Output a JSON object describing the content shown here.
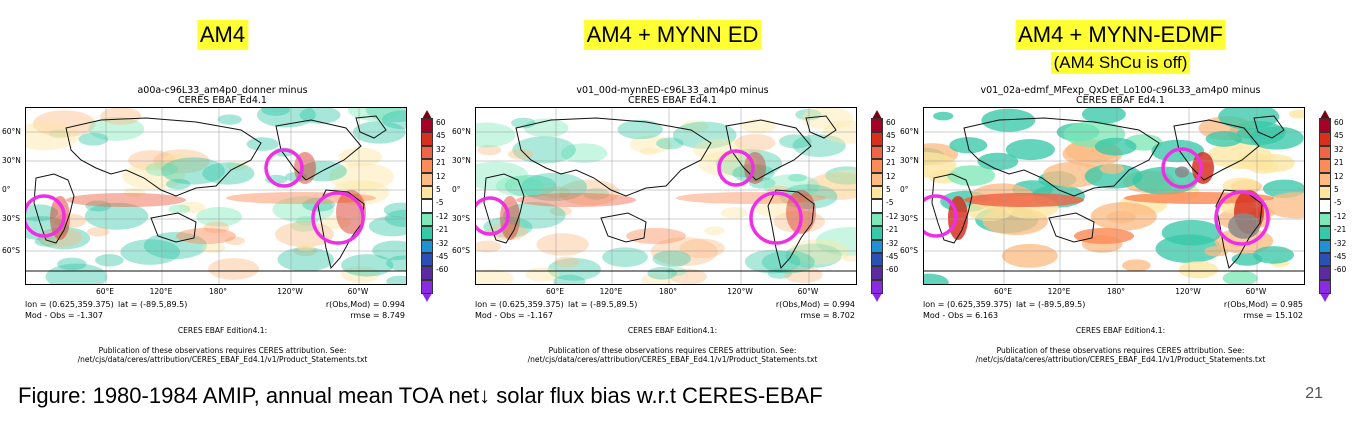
{
  "panels": [
    {
      "badge": "AM4",
      "subbadge": "",
      "plot_title_line1": "a00a-c96L33_am4p0_donner minus",
      "plot_title_line2": "CERES EBAF Ed4.1",
      "lon_range": "lon = (0.625,359.375)",
      "lat_range": "lat = (-89.5,89.5)",
      "corr": "r(Obs,Mod) = 0.994",
      "mean_bias": "Mod - Obs = -1.307",
      "rmse": "rmse = 8.749",
      "intensity": 0.8
    },
    {
      "badge": "AM4 + MYNN ED",
      "subbadge": "",
      "plot_title_line1": "v01_00d-mynnED-c96L33_am4p0 minus",
      "plot_title_line2": "CERES EBAF Ed4.1",
      "lon_range": "lon = (0.625,359.375)",
      "lat_range": "lat = (-89.5,89.5)",
      "corr": "r(Obs,Mod) = 0.994",
      "mean_bias": "Mod - Obs = -1.167",
      "rmse": "rmse = 8.702",
      "intensity": 0.75
    },
    {
      "badge": "AM4 + MYNN-EDMF",
      "subbadge": "(AM4 ShCu is off)",
      "plot_title_line1": "v01_02a-edmf_MFexp_QxDet_Lo100-c96L33_am4p0 minus",
      "plot_title_line2": "CERES EBAF Ed4.1",
      "lon_range": "lon = (0.625,359.375)",
      "lat_range": "lat = (-89.5,89.5)",
      "corr": "r(Obs,Mod) = 0.985",
      "mean_bias": "Mod - Obs = 6.163",
      "rmse": "rmse = 15.102",
      "intensity": 1.4
    }
  ],
  "lat_ticks": [
    "60°N",
    "30°N",
    "0°",
    "30°S",
    "60°S"
  ],
  "lon_ticks": [
    "60°E",
    "120°E",
    "180°",
    "120°W",
    "60°W"
  ],
  "colorbar_labels": [
    "60",
    "45",
    "32",
    "21",
    "12",
    "5",
    "-5",
    "-12",
    "-21",
    "-32",
    "-45",
    "-60"
  ],
  "colorbar_colors": [
    "#a50026",
    "#d7301f",
    "#ef6548",
    "#fc8d59",
    "#fdbb84",
    "#fde6a0",
    "#ffffff",
    "#7de8b8",
    "#35c9a8",
    "#1f8fd6",
    "#2c4fb5",
    "#5a2ca0",
    "#8a2be2"
  ],
  "footer_line1": "CERES EBAF Edition4.1:",
  "footer_line2": "Publication of these observations requires CERES attribution. See:",
  "footer_line3": "/net/cjs/data/ceres/attribution/CERES_EBAF_Ed4.1/v1/Product_Statements.txt",
  "highlight_color": "#ee2fe6",
  "caption": "Figure: 1980-1984 AMIP, annual mean TOA net↓ solar flux bias w.r.t CERES-EBAF",
  "page_number": "21"
}
